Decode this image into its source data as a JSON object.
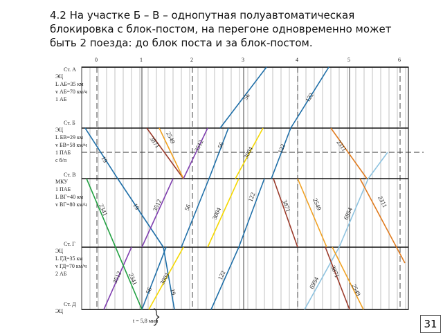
{
  "title": [
    "4.2 На участке Б – В – однопутная полуавтоматическая",
    "блокировка с блок-постом, на перегоне одновременно может",
    "быть 2 поезда: до блок поста и за блок-постом."
  ],
  "page_number": "31",
  "hours": [
    "0",
    "1",
    "2",
    "3",
    "4",
    "5",
    "6"
  ],
  "stations": [
    {
      "name": "Ст. А",
      "lines": [
        "ЭЦ",
        "L АБ=35 км",
        "v АБ=70 км/ч",
        "1 АБ"
      ]
    },
    {
      "name": "Ст. Б",
      "lines": [
        "ЭЦ",
        "L БВ=29 км",
        "v БВ=58 км/ч",
        "1 ПАБ",
        "с б/п"
      ]
    },
    {
      "name": "Ст. В",
      "lines": [
        "МКУ",
        "1 ПАБ",
        "L ВГ=40 км",
        "v ВГ=80 км/ч"
      ]
    },
    {
      "name": "Ст. Г",
      "lines": [
        "ЭЦ",
        "L ГД=35 км",
        "v ГД=70 км/ч",
        "2 АБ"
      ]
    },
    {
      "name": "Ст. Д",
      "lines": [
        "ЭЦ"
      ]
    }
  ],
  "trains": [
    "19",
    "19",
    "19",
    "56",
    "56",
    "56",
    "56",
    "122",
    "122",
    "122",
    "122",
    "6954",
    "6954",
    "2311",
    "2311",
    "3871",
    "3871",
    "3871",
    "2549",
    "2549",
    "2549",
    "3512",
    "3512",
    "3512",
    "2341",
    "2341",
    "3004",
    "3004",
    "3004"
  ],
  "time_note": "t = 5,8 мин"
}
